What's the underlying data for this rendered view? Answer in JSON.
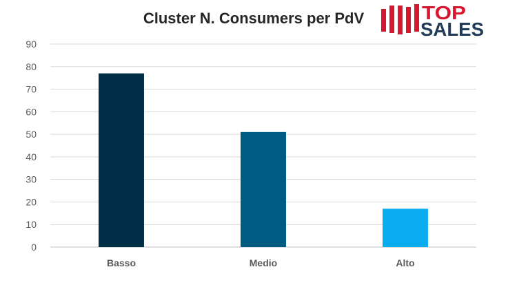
{
  "chart_data": {
    "type": "bar",
    "title": "Cluster N. Consumers per PdV",
    "categories": [
      "Basso",
      "Medio",
      "Alto"
    ],
    "values": [
      77,
      51,
      17
    ],
    "colors": [
      "#002E46",
      "#005B82",
      "#0AABEF"
    ],
    "ylim": [
      0,
      90
    ],
    "yticks": [
      "0",
      "10",
      "20",
      "30",
      "40",
      "50",
      "60",
      "70",
      "80",
      "90"
    ],
    "grid": true,
    "legend": "none"
  },
  "logo": {
    "line1": "TOP",
    "line2": "SALES",
    "accent_color": "#D7172F",
    "text_color": "#1F3B57"
  }
}
